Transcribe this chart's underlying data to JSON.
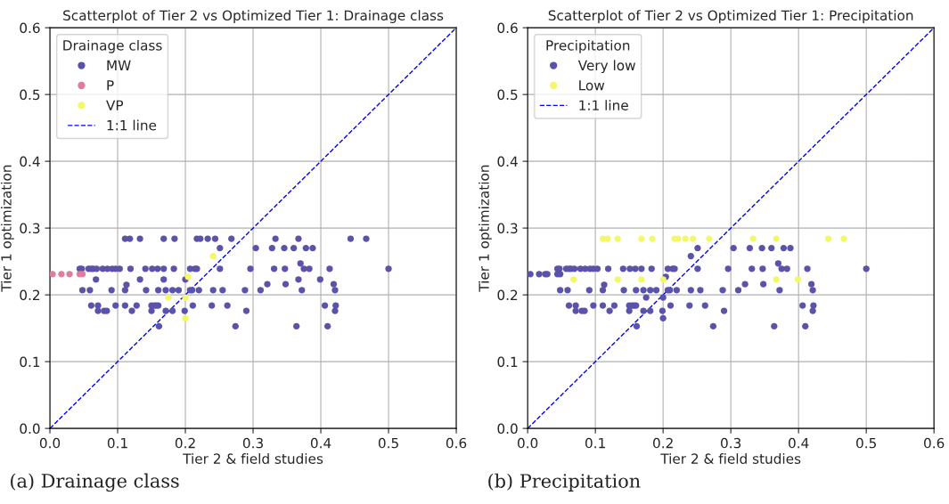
{
  "chart_data": [
    {
      "type": "scatter",
      "title": "Scatterplot of Tier 2 vs Optimized Tier 1: Drainage class",
      "xlabel": "Tier 2 & field studies",
      "ylabel": "Tier 1 optimization",
      "legend_title": "Drainage class",
      "xlim": [
        0,
        0.6
      ],
      "ylim": [
        0,
        0.6
      ],
      "xticks": [
        {
          "value": 0,
          "label": "0.0"
        },
        0.1,
        0.2,
        0.3,
        0.4,
        0.5,
        0.6
      ],
      "yticks": [
        {
          "value": 0,
          "label": "0.0"
        },
        0.1,
        0.2,
        0.3,
        0.4,
        0.5,
        0.6
      ],
      "grid": true,
      "legend": "top left",
      "marker": "circle",
      "series": [
        {
          "name": "MW",
          "color": "#5a53a9",
          "x": [
            0.111,
            0.118,
            0.133,
            0.168,
            0.184,
            0.217,
            0.222,
            0.233,
            0.244,
            0.268,
            0.333,
            0.367,
            0.444,
            0.467,
            0.251,
            0.304,
            0.328,
            0.346,
            0.36,
            0.378,
            0.388,
            0.37,
            0.044,
            0.047,
            0.057,
            0.061,
            0.064,
            0.069,
            0.078,
            0.085,
            0.092,
            0.097,
            0.103,
            0.119,
            0.141,
            0.151,
            0.159,
            0.168,
            0.183,
            0.207,
            0.214,
            0.217,
            0.251,
            0.296,
            0.331,
            0.347,
            0.375,
            0.383,
            0.413,
            0.5,
            0.068,
            0.133,
            0.168,
            0.2,
            0.367,
            0.399,
            0.113,
            0.321,
            0.348,
            0.419,
            0.048,
            0.059,
            0.091,
            0.111,
            0.142,
            0.16,
            0.171,
            0.181,
            0.19,
            0.207,
            0.21,
            0.22,
            0.241,
            0.255,
            0.288,
            0.311,
            0.372,
            0.421,
            0.061,
            0.071,
            0.097,
            0.111,
            0.128,
            0.15,
            0.154,
            0.157,
            0.16,
            0.211,
            0.239,
            0.262,
            0.406,
            0.422,
            0.071,
            0.08,
            0.084,
            0.121,
            0.15,
            0.171,
            0.181,
            0.199,
            0.29,
            0.421,
            0.161,
            0.274,
            0.364,
            0.41
          ],
          "values": [
            0.284,
            0.284,
            0.284,
            0.284,
            0.284,
            0.284,
            0.284,
            0.284,
            0.284,
            0.284,
            0.284,
            0.284,
            0.284,
            0.284,
            0.27,
            0.27,
            0.27,
            0.27,
            0.27,
            0.27,
            0.27,
            0.247,
            0.239,
            0.239,
            0.239,
            0.239,
            0.239,
            0.239,
            0.239,
            0.239,
            0.239,
            0.239,
            0.239,
            0.239,
            0.239,
            0.239,
            0.239,
            0.239,
            0.239,
            0.239,
            0.239,
            0.239,
            0.239,
            0.239,
            0.239,
            0.239,
            0.239,
            0.239,
            0.239,
            0.239,
            0.223,
            0.223,
            0.223,
            0.223,
            0.223,
            0.223,
            0.215,
            0.216,
            0.216,
            0.216,
            0.207,
            0.207,
            0.207,
            0.207,
            0.207,
            0.207,
            0.207,
            0.207,
            0.207,
            0.207,
            0.207,
            0.207,
            0.207,
            0.207,
            0.207,
            0.207,
            0.207,
            0.207,
            0.184,
            0.184,
            0.184,
            0.184,
            0.184,
            0.184,
            0.184,
            0.184,
            0.184,
            0.184,
            0.184,
            0.184,
            0.184,
            0.184,
            0.176,
            0.176,
            0.176,
            0.176,
            0.176,
            0.176,
            0.176,
            0.176,
            0.176,
            0.176,
            0.153,
            0.153,
            0.153,
            0.153
          ]
        },
        {
          "name": "P",
          "color": "#dc7ea0",
          "x": [
            0.004,
            0.017,
            0.026,
            0.029,
            0.044,
            0.048
          ],
          "values": [
            0.231,
            0.231,
            null,
            0.231,
            0.231,
            0.231
          ]
        },
        {
          "name": "VP",
          "color": "#f2f86a",
          "x": [
            0.241,
            0.204,
            0.175,
            0.2,
            0.2
          ],
          "values": [
            0.258,
            0.227,
            0.196,
            0.196,
            0.165
          ]
        },
        {
          "name": "1:1 line",
          "type": "line",
          "color": "#0000ff",
          "line_style": "dashed",
          "marker": "none",
          "x": [
            0,
            0.6
          ],
          "values": [
            0,
            0.6
          ]
        }
      ],
      "annotations": [
        "(a) Drainage class"
      ]
    },
    {
      "type": "scatter",
      "title": "Scatterplot of Tier 2 vs Optimized Tier 1: Precipitation",
      "xlabel": "Tier 2 & field studies",
      "ylabel": "Tier 1 optimization",
      "legend_title": "Precipitation",
      "xlim": [
        0,
        0.6
      ],
      "ylim": [
        0,
        0.6
      ],
      "xticks": [
        {
          "value": 0,
          "label": "0.0"
        },
        0.1,
        0.2,
        0.3,
        0.4,
        0.5,
        0.6
      ],
      "yticks": [
        {
          "value": 0,
          "label": "0.0"
        },
        0.1,
        0.2,
        0.3,
        0.4,
        0.5,
        0.6
      ],
      "grid": true,
      "legend": "top left",
      "marker": "circle",
      "series": [
        {
          "name": "Very low",
          "color": "#5a53a9",
          "x": [
            0.251,
            0.304,
            0.328,
            0.346,
            0.36,
            0.378,
            0.388,
            0.37,
            0.241,
            0.044,
            0.047,
            0.057,
            0.061,
            0.064,
            0.069,
            0.078,
            0.085,
            0.092,
            0.097,
            0.103,
            0.119,
            0.141,
            0.151,
            0.159,
            0.168,
            0.183,
            0.207,
            0.214,
            0.217,
            0.251,
            0.296,
            0.331,
            0.347,
            0.375,
            0.383,
            0.413,
            0.5,
            0.004,
            0.017,
            0.026,
            0.029,
            0.044,
            0.048,
            0.204,
            0.113,
            0.321,
            0.348,
            0.419,
            0.048,
            0.059,
            0.091,
            0.111,
            0.142,
            0.16,
            0.171,
            0.181,
            0.19,
            0.207,
            0.21,
            0.22,
            0.241,
            0.255,
            0.288,
            0.311,
            0.372,
            0.421,
            0.175,
            0.2,
            0.061,
            0.071,
            0.097,
            0.111,
            0.128,
            0.15,
            0.154,
            0.157,
            0.16,
            0.211,
            0.239,
            0.262,
            0.406,
            0.422,
            0.071,
            0.08,
            0.084,
            0.121,
            0.15,
            0.171,
            0.181,
            0.199,
            0.29,
            0.421,
            0.2,
            0.161,
            0.274,
            0.364,
            0.41
          ],
          "values": [
            0.27,
            0.27,
            0.27,
            0.27,
            0.27,
            0.27,
            0.27,
            0.247,
            0.258,
            0.239,
            0.239,
            0.239,
            0.239,
            0.239,
            0.239,
            0.239,
            0.239,
            0.239,
            0.239,
            0.239,
            0.239,
            0.239,
            0.239,
            0.239,
            0.239,
            0.239,
            0.239,
            0.239,
            0.239,
            0.239,
            0.239,
            0.239,
            0.239,
            0.239,
            0.239,
            0.239,
            0.239,
            0.231,
            0.231,
            0.231,
            0.231,
            0.231,
            0.231,
            0.227,
            0.215,
            0.216,
            0.216,
            0.216,
            0.207,
            0.207,
            0.207,
            0.207,
            0.207,
            0.207,
            0.207,
            0.207,
            0.207,
            0.207,
            0.207,
            0.207,
            0.207,
            0.207,
            0.207,
            0.207,
            0.207,
            0.207,
            0.196,
            0.196,
            0.184,
            0.184,
            0.184,
            0.184,
            0.184,
            0.184,
            0.184,
            0.184,
            0.184,
            0.184,
            0.184,
            0.184,
            0.184,
            0.184,
            0.176,
            0.176,
            0.176,
            0.176,
            0.176,
            0.176,
            0.176,
            0.176,
            0.176,
            0.176,
            0.165,
            0.153,
            0.153,
            0.153,
            0.153
          ]
        },
        {
          "name": "Low",
          "color": "#f2f86a",
          "x": [
            0.111,
            0.118,
            0.133,
            0.168,
            0.184,
            0.217,
            0.222,
            0.233,
            0.244,
            0.268,
            0.333,
            0.367,
            0.444,
            0.467,
            0.068,
            0.133,
            0.168,
            0.2,
            0.367,
            0.399
          ],
          "values": [
            0.284,
            0.284,
            0.284,
            0.284,
            0.284,
            0.284,
            0.284,
            0.284,
            0.284,
            0.284,
            0.284,
            0.284,
            0.284,
            0.284,
            0.223,
            0.223,
            0.223,
            0.223,
            0.223,
            0.223
          ]
        },
        {
          "name": "1:1 line",
          "type": "line",
          "color": "#0000ff",
          "line_style": "dashed",
          "marker": "none",
          "x": [
            0,
            0.6
          ],
          "values": [
            0,
            0.6
          ]
        }
      ],
      "annotations": [
        "(b) Precipitation"
      ]
    }
  ]
}
